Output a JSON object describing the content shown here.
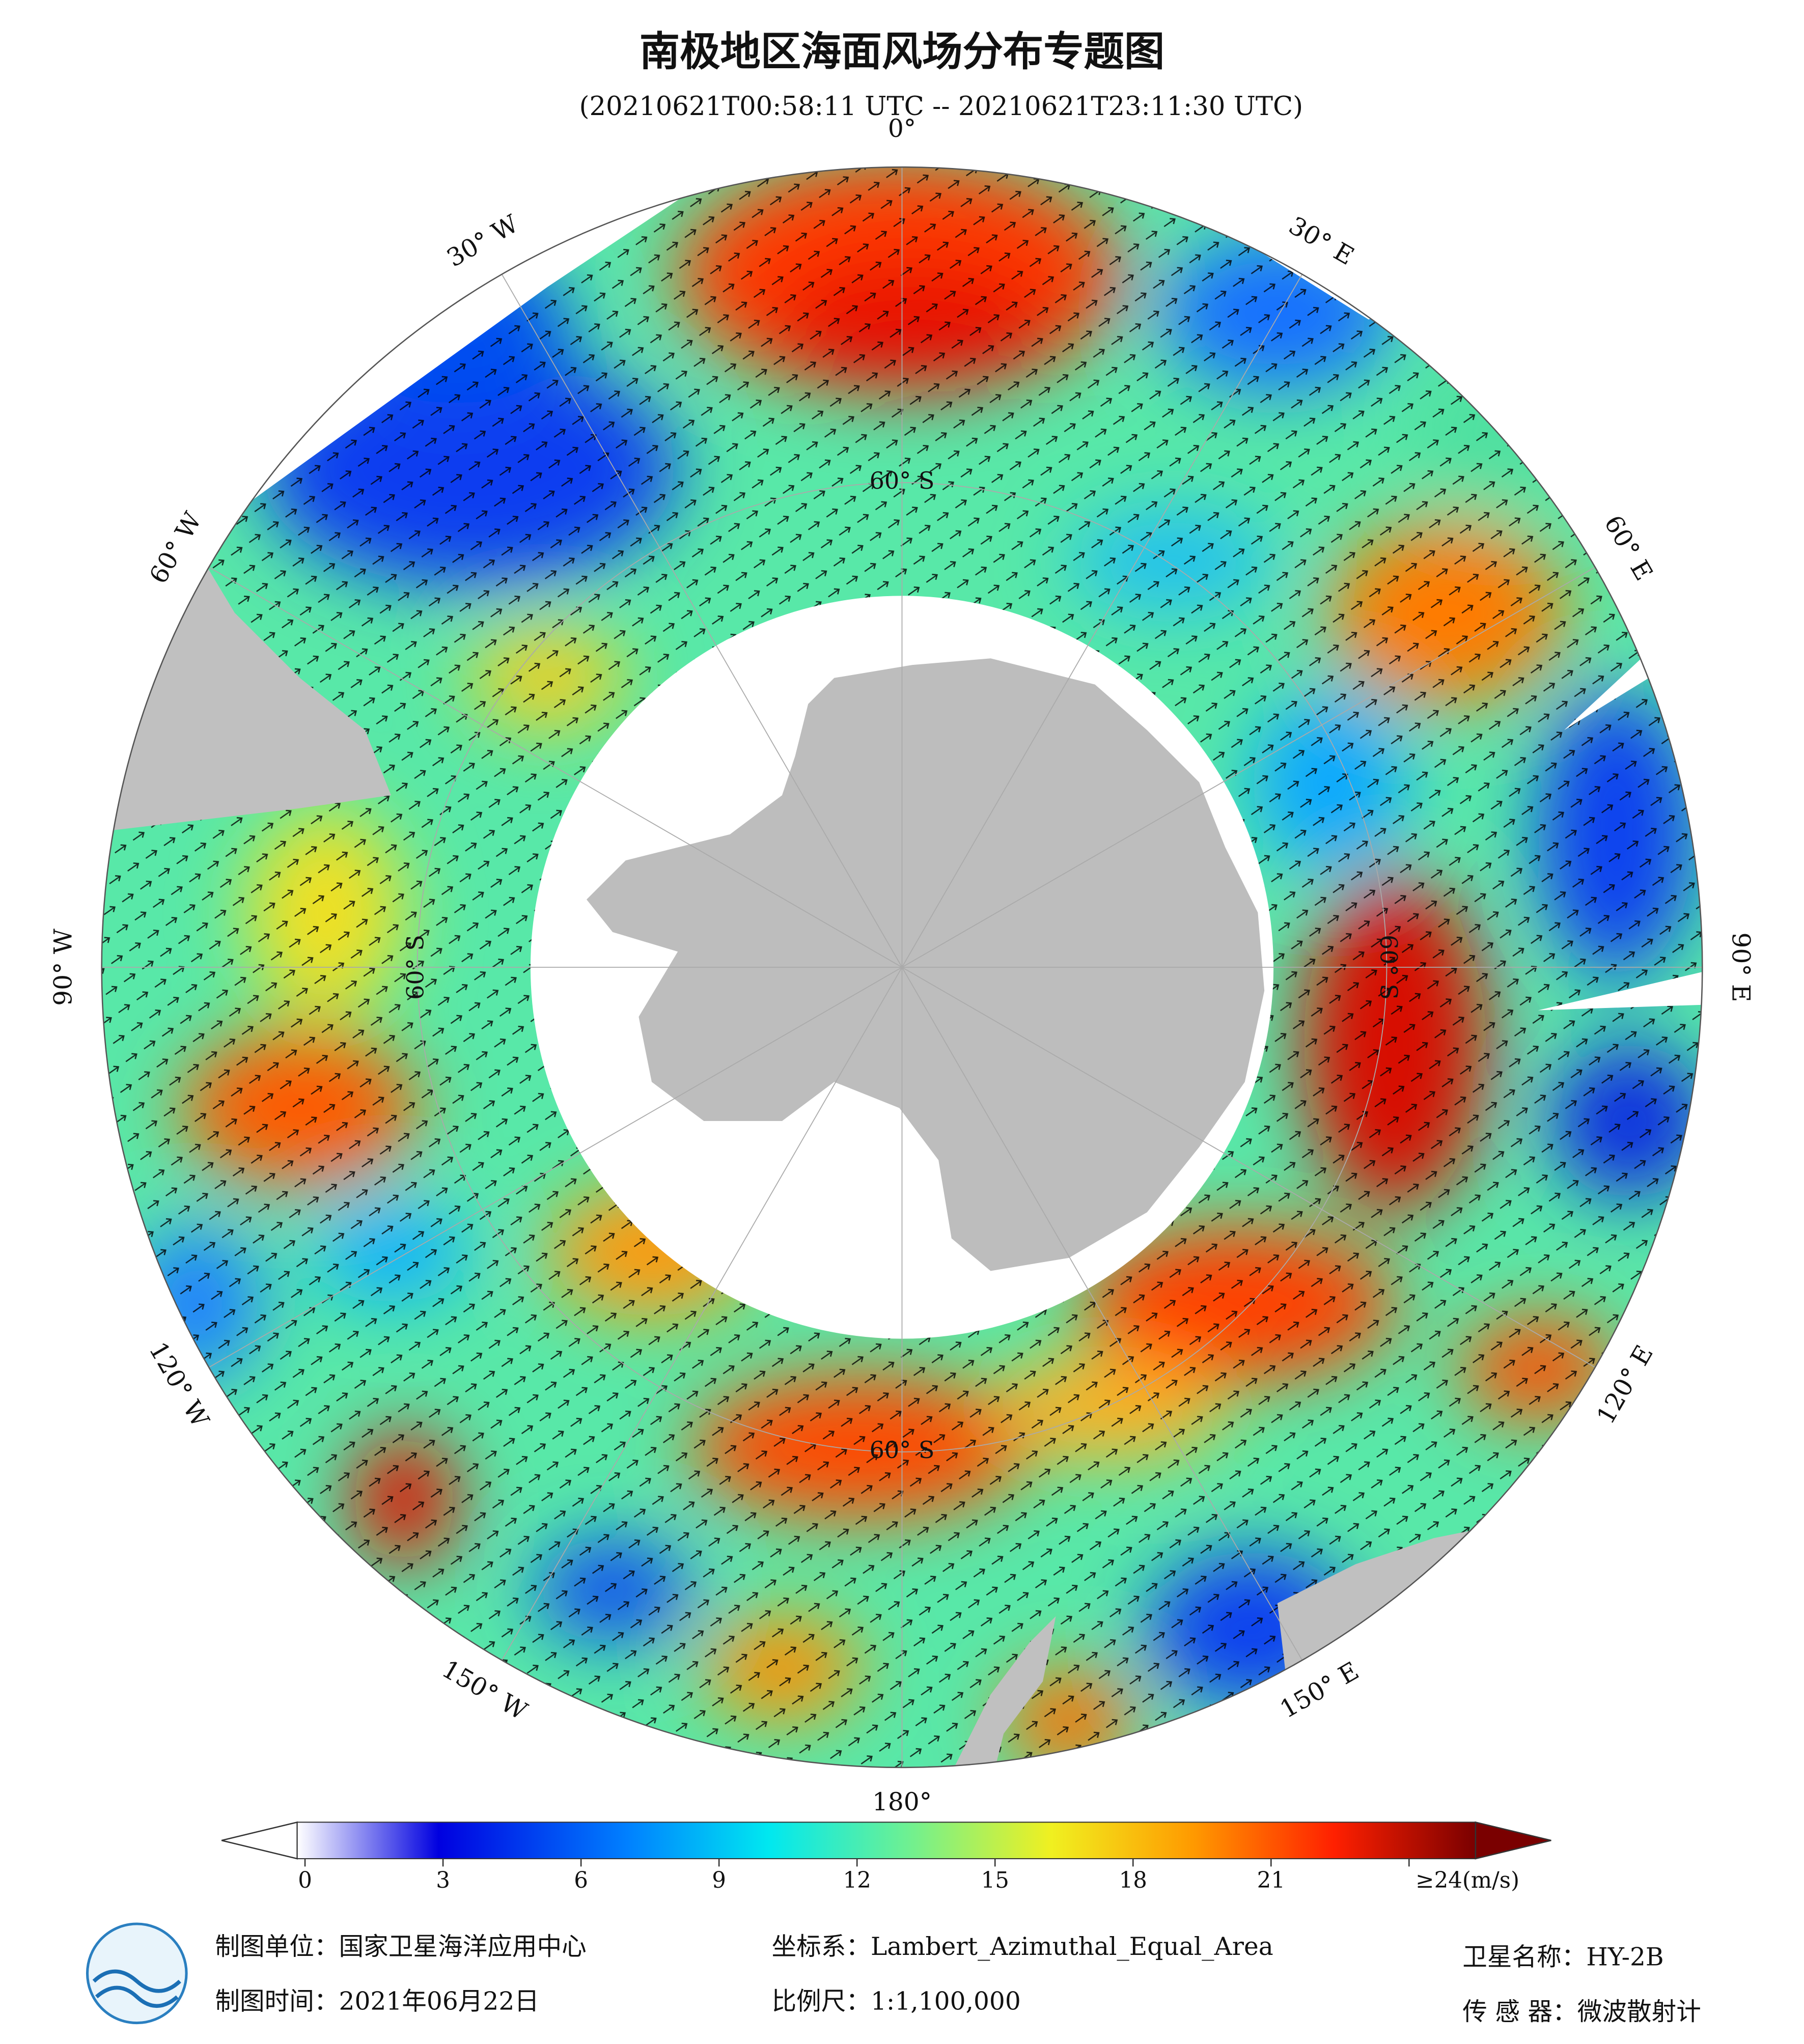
{
  "header": {
    "title": "南极地区海面风场分布专题图",
    "subtitle": "(20210621T00:58:11 UTC -- 20210621T23:11:30 UTC)"
  },
  "map": {
    "projection_center": "South Pole",
    "lon_ticks": [
      {
        "value": 0,
        "label": "0°"
      },
      {
        "value": 30,
        "label": "30° E"
      },
      {
        "value": 60,
        "label": "60° E"
      },
      {
        "value": 90,
        "label": "90° E"
      },
      {
        "value": 120,
        "label": "120° E"
      },
      {
        "value": 150,
        "label": "150° E"
      },
      {
        "value": 180,
        "label": "180°"
      },
      {
        "value": -150,
        "label": "150° W"
      },
      {
        "value": -120,
        "label": "120° W"
      },
      {
        "value": -90,
        "label": "90° W"
      },
      {
        "value": -60,
        "label": "60° W"
      },
      {
        "value": -30,
        "label": "30° W"
      }
    ],
    "lat_ticks": [
      {
        "value": -60,
        "label": "60° S"
      }
    ]
  },
  "colorbar": {
    "lim": [
      0,
      24
    ],
    "ticks": [
      0,
      3,
      6,
      9,
      12,
      15,
      18,
      21,
      {
        "value": 24,
        "label": "≥24(m/s)"
      }
    ]
  },
  "footer": {
    "producer": "制图单位：国家卫星海洋应用中心",
    "date": "制图时间：2021年06月22日",
    "crs": "坐标系：Lambert_Azimuthal_Equal_Area",
    "scale": "比例尺：1:1,100,000",
    "satellite": "卫星名称：HY-2B",
    "sensor": "传 感 器：微波散射计"
  }
}
